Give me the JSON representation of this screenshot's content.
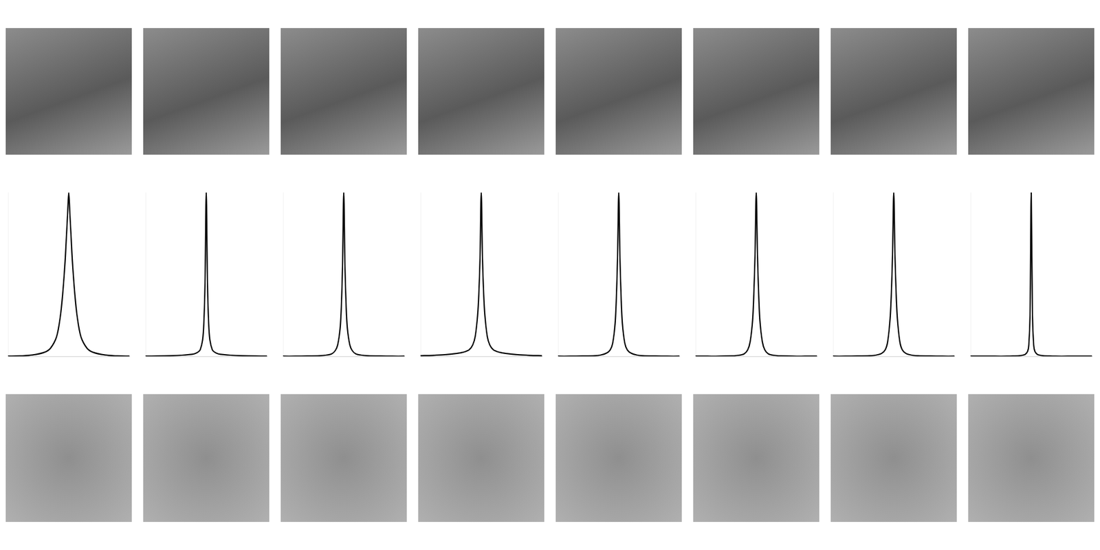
{
  "chart_data": [
    {
      "type": "line",
      "color": "#000000",
      "grid": false,
      "tick_labels": false,
      "xlim": [
        -50,
        50
      ],
      "ylim": [
        0,
        1
      ],
      "x": [
        -50,
        -40,
        -30,
        -20,
        -15,
        -10,
        -7,
        -5,
        -3,
        -2,
        -1,
        0,
        1,
        2,
        3,
        5,
        7,
        10,
        15,
        20,
        30,
        40,
        50
      ],
      "values": [
        0.001,
        0.003,
        0.008,
        0.025,
        0.05,
        0.12,
        0.24,
        0.38,
        0.58,
        0.72,
        0.86,
        1,
        0.86,
        0.72,
        0.58,
        0.38,
        0.24,
        0.12,
        0.05,
        0.025,
        0.008,
        0.003,
        0.001
      ]
    },
    {
      "type": "line",
      "color": "#000000",
      "grid": false,
      "tick_labels": false,
      "xlim": [
        -50,
        50
      ],
      "ylim": [
        0,
        1
      ],
      "x": [
        -50,
        -40,
        -30,
        -20,
        -15,
        -10,
        -7,
        -5,
        -3,
        -2,
        -1,
        0,
        1,
        2,
        3,
        5,
        7,
        10,
        15,
        20,
        30,
        40,
        50
      ],
      "values": [
        0.001,
        0.002,
        0.004,
        0.007,
        0.01,
        0.015,
        0.025,
        0.04,
        0.1,
        0.2,
        0.45,
        1,
        0.45,
        0.2,
        0.1,
        0.04,
        0.025,
        0.015,
        0.01,
        0.007,
        0.004,
        0.002,
        0.001
      ]
    },
    {
      "type": "line",
      "color": "#000000",
      "grid": false,
      "tick_labels": false,
      "xlim": [
        -50,
        50
      ],
      "ylim": [
        0,
        1
      ],
      "x": [
        -50,
        -40,
        -30,
        -20,
        -15,
        -10,
        -7,
        -5,
        -3,
        -2,
        -1,
        0,
        1,
        2,
        3,
        5,
        7,
        10,
        15,
        20,
        30,
        40,
        50
      ],
      "values": [
        0.001,
        0.001,
        0.002,
        0.004,
        0.007,
        0.015,
        0.035,
        0.07,
        0.17,
        0.3,
        0.55,
        1,
        0.55,
        0.3,
        0.17,
        0.07,
        0.035,
        0.015,
        0.007,
        0.004,
        0.002,
        0.001,
        0.001
      ]
    },
    {
      "type": "line",
      "color": "#000000",
      "grid": false,
      "tick_labels": false,
      "xlim": [
        -50,
        50
      ],
      "ylim": [
        0,
        1
      ],
      "x": [
        -50,
        -40,
        -30,
        -20,
        -15,
        -10,
        -7,
        -5,
        -3,
        -2,
        -1,
        0,
        1,
        2,
        3,
        5,
        7,
        10,
        15,
        20,
        30,
        40,
        50
      ],
      "values": [
        0.004,
        0.006,
        0.01,
        0.018,
        0.025,
        0.04,
        0.07,
        0.12,
        0.25,
        0.38,
        0.6,
        1,
        0.6,
        0.38,
        0.25,
        0.12,
        0.07,
        0.04,
        0.025,
        0.018,
        0.01,
        0.006,
        0.004
      ]
    },
    {
      "type": "line",
      "color": "#000000",
      "grid": false,
      "tick_labels": false,
      "xlim": [
        -50,
        50
      ],
      "ylim": [
        0,
        1
      ],
      "x": [
        -50,
        -40,
        -30,
        -20,
        -15,
        -10,
        -7,
        -5,
        -3,
        -2,
        -1,
        0,
        1,
        2,
        3,
        5,
        7,
        10,
        15,
        20,
        30,
        40,
        50
      ],
      "values": [
        0.001,
        0.001,
        0.002,
        0.004,
        0.008,
        0.02,
        0.04,
        0.08,
        0.2,
        0.35,
        0.6,
        1,
        0.6,
        0.35,
        0.2,
        0.08,
        0.04,
        0.02,
        0.008,
        0.004,
        0.002,
        0.001,
        0.001
      ]
    },
    {
      "type": "line",
      "color": "#000000",
      "grid": false,
      "tick_labels": false,
      "xlim": [
        -50,
        50
      ],
      "ylim": [
        0,
        1
      ],
      "x": [
        -50,
        -40,
        -30,
        -20,
        -15,
        -10,
        -7,
        -5,
        -3,
        -2,
        -1,
        0,
        1,
        2,
        3,
        5,
        7,
        10,
        15,
        20,
        30,
        40,
        50
      ],
      "values": [
        0.001,
        0.001,
        0.001,
        0.003,
        0.006,
        0.015,
        0.04,
        0.09,
        0.22,
        0.38,
        0.62,
        1,
        0.62,
        0.38,
        0.22,
        0.09,
        0.04,
        0.015,
        0.006,
        0.003,
        0.001,
        0.001,
        0.001
      ]
    },
    {
      "type": "line",
      "color": "#000000",
      "grid": false,
      "tick_labels": false,
      "xlim": [
        -50,
        50
      ],
      "ylim": [
        0,
        1
      ],
      "x": [
        -50,
        -40,
        -30,
        -20,
        -15,
        -10,
        -7,
        -5,
        -3,
        -2,
        -1,
        0,
        1,
        2,
        3,
        5,
        7,
        10,
        15,
        20,
        30,
        40,
        50
      ],
      "values": [
        0.001,
        0.001,
        0.002,
        0.004,
        0.007,
        0.018,
        0.04,
        0.09,
        0.23,
        0.38,
        0.62,
        1,
        0.62,
        0.38,
        0.23,
        0.09,
        0.04,
        0.018,
        0.007,
        0.004,
        0.002,
        0.001,
        0.001
      ]
    },
    {
      "type": "line",
      "color": "#000000",
      "grid": false,
      "tick_labels": false,
      "xlim": [
        -50,
        50
      ],
      "ylim": [
        0,
        1
      ],
      "x": [
        -50,
        -40,
        -30,
        -20,
        -15,
        -10,
        -7,
        -5,
        -3,
        -2,
        -1,
        0,
        1,
        2,
        3,
        5,
        7,
        10,
        15,
        20,
        30,
        40,
        50
      ],
      "values": [
        0.001,
        0.001,
        0.001,
        0.001,
        0.002,
        0.004,
        0.007,
        0.012,
        0.03,
        0.07,
        0.25,
        1,
        0.25,
        0.07,
        0.03,
        0.012,
        0.007,
        0.004,
        0.002,
        0.001,
        0.001,
        0.001,
        0.001
      ]
    }
  ]
}
